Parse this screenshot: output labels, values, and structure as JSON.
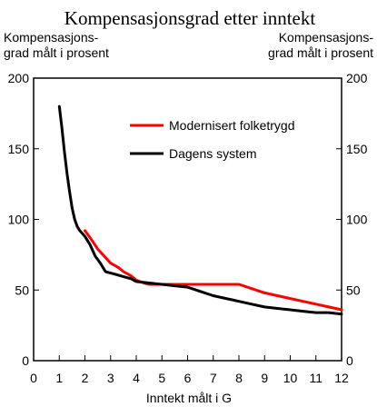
{
  "chart_data": {
    "type": "line",
    "title": "Kompensasjonsgrad etter inntekt",
    "ylabel_left": [
      "Kompensasjons-",
      "grad målt i prosent"
    ],
    "ylabel_right": [
      "Kompensasjons-",
      "grad målt i prosent"
    ],
    "xlabel": "Inntekt målt i G",
    "xlim": [
      0,
      12
    ],
    "ylim": [
      0,
      200
    ],
    "xticks": [
      "0",
      "1",
      "2",
      "3",
      "4",
      "5",
      "6",
      "7",
      "8",
      "9",
      "10",
      "11",
      "12"
    ],
    "yticks": [
      "0",
      "50",
      "100",
      "150",
      "200"
    ],
    "legend_position": "top-right",
    "grid": false,
    "series": [
      {
        "name": "Modernisert folketrygd",
        "color": "#ff0000",
        "x": [
          2.0,
          2.2,
          2.5,
          2.8,
          3.0,
          3.3,
          3.5,
          3.8,
          4.0,
          4.3,
          4.5,
          5.0,
          6.0,
          7.0,
          8.0,
          8.5,
          9.0,
          9.5,
          10.0,
          10.5,
          11.0,
          11.5,
          12.0
        ],
        "y": [
          92,
          87,
          79,
          73,
          69,
          66,
          63,
          60,
          57,
          55,
          54,
          54,
          54,
          54,
          54,
          51,
          48,
          46,
          44,
          42,
          40,
          38,
          36
        ]
      },
      {
        "name": "Dagens system",
        "color": "#000000",
        "x": [
          1.0,
          1.1,
          1.2,
          1.3,
          1.4,
          1.5,
          1.6,
          1.7,
          1.8,
          1.9,
          2.0,
          2.2,
          2.4,
          2.6,
          2.8,
          3.0,
          3.2,
          3.4,
          3.6,
          3.8,
          4.0,
          4.5,
          5.0,
          5.5,
          6.0,
          6.5,
          7.0,
          7.5,
          8.0,
          8.5,
          9.0,
          9.5,
          10.0,
          10.5,
          11.0,
          11.5,
          12.0
        ],
        "y": [
          180,
          165,
          148,
          133,
          120,
          108,
          100,
          95,
          92,
          90,
          88,
          82,
          74,
          69,
          63,
          62,
          61,
          60,
          59,
          58,
          56,
          55,
          54,
          53,
          52,
          49,
          46,
          44,
          42,
          40,
          38,
          37,
          36,
          35,
          34,
          34,
          33
        ]
      }
    ]
  }
}
